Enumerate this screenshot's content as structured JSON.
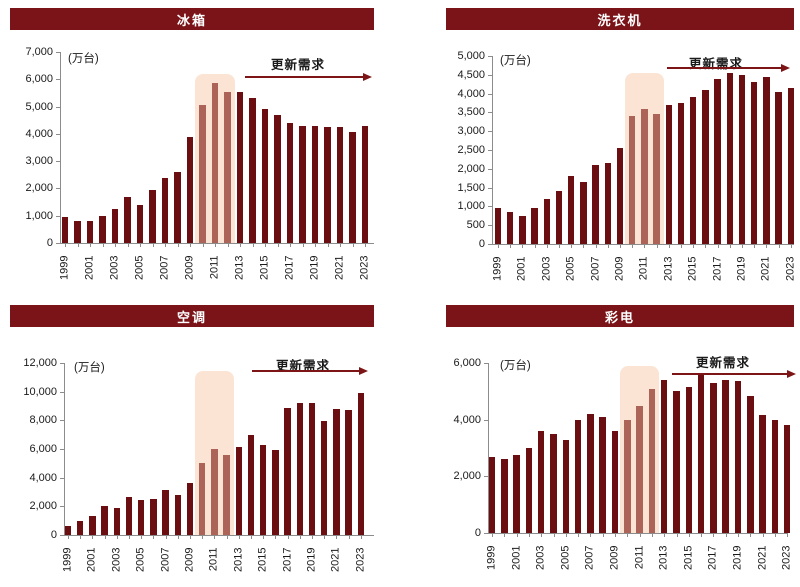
{
  "page": {
    "background": "#ffffff"
  },
  "colors": {
    "bar": "#6B0E12",
    "bar_highlighted": "#AC6459",
    "highlight_band": "#FBE4D3",
    "title_bg": "#7A1418",
    "title_text": "#ffffff",
    "arrow": "#7D1517",
    "axis": "#8c8c8c",
    "text": "#1a1a1a"
  },
  "chart_data": [
    {
      "type": "bar",
      "title": "冰箱",
      "ylabel": "(万台)",
      "annotation": "更新需求",
      "legend": "none",
      "grid": false,
      "x": [
        1999,
        2000,
        2001,
        2002,
        2003,
        2004,
        2005,
        2006,
        2007,
        2008,
        2009,
        2010,
        2011,
        2012,
        2013,
        2014,
        2015,
        2016,
        2017,
        2018,
        2019,
        2020,
        2021,
        2022,
        2023
      ],
      "values": [
        950,
        800,
        800,
        1000,
        1250,
        1700,
        1400,
        1950,
        2400,
        2600,
        3900,
        5050,
        5850,
        5550,
        5550,
        5300,
        4900,
        4700,
        4400,
        4300,
        4300,
        4250,
        4250,
        4050,
        4300
      ],
      "ylim": [
        0,
        7000
      ],
      "ytick_step": 1000,
      "xtick_labels": [
        1999,
        2001,
        2003,
        2005,
        2007,
        2009,
        2011,
        2013,
        2015,
        2017,
        2019,
        2021,
        2023
      ],
      "highlight": {
        "from": 2010,
        "to": 2012,
        "top_value": 6200
      }
    },
    {
      "type": "bar",
      "title": "洗衣机",
      "ylabel": "(万台)",
      "annotation": "更新需求",
      "legend": "none",
      "grid": false,
      "x": [
        1999,
        2000,
        2001,
        2002,
        2003,
        2004,
        2005,
        2006,
        2007,
        2008,
        2009,
        2010,
        2011,
        2012,
        2013,
        2014,
        2015,
        2016,
        2017,
        2018,
        2019,
        2020,
        2021,
        2022,
        2023
      ],
      "values": [
        950,
        850,
        750,
        950,
        1200,
        1400,
        1800,
        1650,
        2100,
        2150,
        2550,
        3400,
        3600,
        3450,
        3700,
        3750,
        3900,
        4100,
        4400,
        4550,
        4500,
        4300,
        4450,
        4050,
        4150
      ],
      "ylim": [
        0,
        5000
      ],
      "ytick_step": 500,
      "xtick_labels": [
        1999,
        2001,
        2003,
        2005,
        2007,
        2009,
        2011,
        2013,
        2015,
        2017,
        2019,
        2021,
        2023
      ],
      "highlight": {
        "from": 2010,
        "to": 2012,
        "top_value": 4560
      }
    },
    {
      "type": "bar",
      "title": "空调",
      "ylabel": "(万台)",
      "annotation": "更新需求",
      "legend": "none",
      "grid": false,
      "x": [
        1999,
        2000,
        2001,
        2002,
        2003,
        2004,
        2005,
        2006,
        2007,
        2008,
        2009,
        2010,
        2011,
        2012,
        2013,
        2014,
        2015,
        2016,
        2017,
        2018,
        2019,
        2020,
        2021,
        2022,
        2023
      ],
      "values": [
        650,
        950,
        1350,
        2050,
        1850,
        2650,
        2450,
        2500,
        3150,
        2800,
        3650,
        5000,
        6000,
        5600,
        6150,
        6950,
        6250,
        5900,
        8850,
        9200,
        9200,
        7950,
        8800,
        8700,
        9900
      ],
      "ylim": [
        0,
        12000
      ],
      "ytick_step": 2000,
      "xtick_labels": [
        1999,
        2001,
        2003,
        2005,
        2007,
        2009,
        2011,
        2013,
        2015,
        2017,
        2019,
        2021,
        2023
      ],
      "highlight": {
        "from": 2010,
        "to": 2012,
        "top_value": 11450
      }
    },
    {
      "type": "bar",
      "title": "彩电",
      "ylabel": "(万台)",
      "annotation": "更新需求",
      "legend": "none",
      "grid": false,
      "x": [
        1999,
        2000,
        2001,
        2002,
        2003,
        2004,
        2005,
        2006,
        2007,
        2008,
        2009,
        2010,
        2011,
        2012,
        2013,
        2014,
        2015,
        2016,
        2017,
        2018,
        2019,
        2020,
        2021,
        2022,
        2023
      ],
      "values": [
        2700,
        2600,
        2750,
        3000,
        3600,
        3500,
        3300,
        4000,
        4200,
        4100,
        3600,
        4000,
        4500,
        5100,
        5400,
        5000,
        5150,
        5600,
        5300,
        5400,
        5350,
        4850,
        4150,
        4000,
        3800
      ],
      "ylim": [
        0,
        6000
      ],
      "ytick_step": 2000,
      "xtick_labels": [
        1999,
        2001,
        2003,
        2005,
        2007,
        2009,
        2011,
        2013,
        2015,
        2017,
        2019,
        2021,
        2023
      ],
      "highlight": {
        "from": 2010,
        "to": 2012,
        "top_value": 5880
      }
    }
  ]
}
